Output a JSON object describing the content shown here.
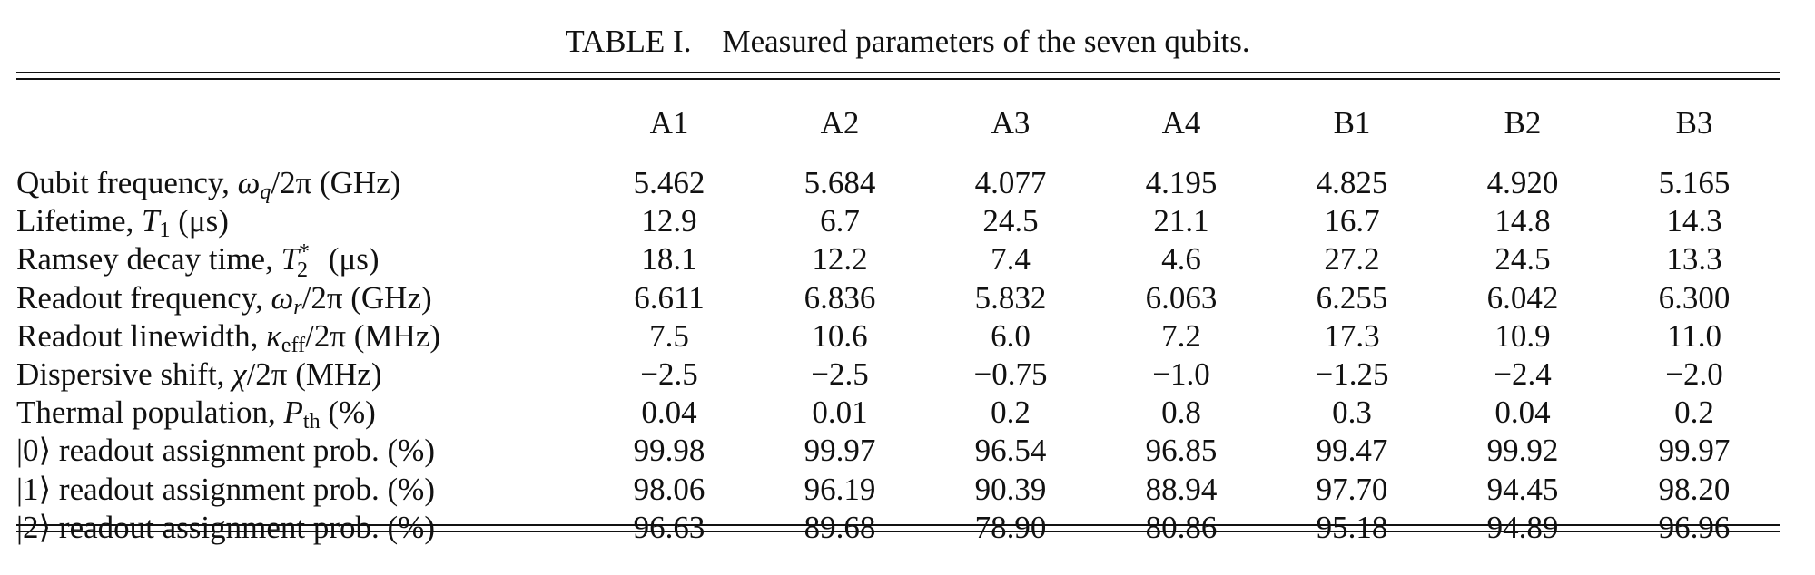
{
  "caption": {
    "label": "TABLE I.",
    "text": "Measured parameters of the seven qubits."
  },
  "columns": [
    "A1",
    "A2",
    "A3",
    "A4",
    "B1",
    "B2",
    "B3"
  ],
  "rows": [
    {
      "label_text": "Qubit frequency, ",
      "label_symbol": "ω",
      "label_sub": "q",
      "label_sup": "",
      "label_tail": "/2π",
      "label_unit": " (GHz)",
      "values": [
        "5.462",
        "5.684",
        "4.077",
        "4.195",
        "4.825",
        "4.920",
        "5.165"
      ]
    },
    {
      "label_text": "Lifetime, ",
      "label_symbol": "T",
      "label_sub": "1",
      "label_sup": "",
      "label_tail": "",
      "label_unit": " (μs)",
      "values": [
        "12.9",
        "6.7",
        "24.5",
        "21.1",
        "16.7",
        "14.8",
        "14.3"
      ]
    },
    {
      "label_text": "Ramsey decay time, ",
      "label_symbol": "T",
      "label_sub": "2",
      "label_sup": "*",
      "label_tail": "",
      "label_unit": " (μs)",
      "values": [
        "18.1",
        "12.2",
        "7.4",
        "4.6",
        "27.2",
        "24.5",
        "13.3"
      ]
    },
    {
      "label_text": "Readout frequency, ",
      "label_symbol": "ω",
      "label_sub": "r",
      "label_sup": "",
      "label_tail": "/2π",
      "label_unit": " (GHz)",
      "values": [
        "6.611",
        "6.836",
        "5.832",
        "6.063",
        "6.255",
        "6.042",
        "6.300"
      ]
    },
    {
      "label_text": "Readout linewidth, ",
      "label_symbol": "κ",
      "label_sub": "eff",
      "label_sup": "",
      "label_tail": "/2π",
      "label_unit": " (MHz)",
      "values": [
        "7.5",
        "10.6",
        "6.0",
        "7.2",
        "17.3",
        "10.9",
        "11.0"
      ]
    },
    {
      "label_text": "Dispersive shift, ",
      "label_symbol": "χ",
      "label_sub": "",
      "label_sup": "",
      "label_tail": "/2π",
      "label_unit": " (MHz)",
      "values": [
        "−2.5",
        "−2.5",
        "−0.75",
        "−1.0",
        "−1.25",
        "−2.4",
        "−2.0"
      ]
    },
    {
      "label_text": "Thermal population, ",
      "label_symbol": "P",
      "label_sub": "th",
      "label_sup": "",
      "label_tail": "",
      "label_unit": " (%)",
      "values": [
        "0.04",
        "0.01",
        "0.2",
        "0.8",
        "0.3",
        "0.04",
        "0.2"
      ]
    },
    {
      "label_ket": "|0⟩",
      "label_text": " readout assignment prob. (%)",
      "values": [
        "99.98",
        "99.97",
        "96.54",
        "96.85",
        "99.47",
        "99.92",
        "99.97"
      ]
    },
    {
      "label_ket": "|1⟩",
      "label_text": " readout assignment prob. (%)",
      "values": [
        "98.06",
        "96.19",
        "90.39",
        "88.94",
        "97.70",
        "94.45",
        "98.20"
      ]
    },
    {
      "label_ket": "|2⟩",
      "label_text": " readout assignment prob. (%)",
      "values": [
        "96.63",
        "89.68",
        "78.90",
        "80.86",
        "95.18",
        "94.89",
        "96.96"
      ]
    }
  ]
}
